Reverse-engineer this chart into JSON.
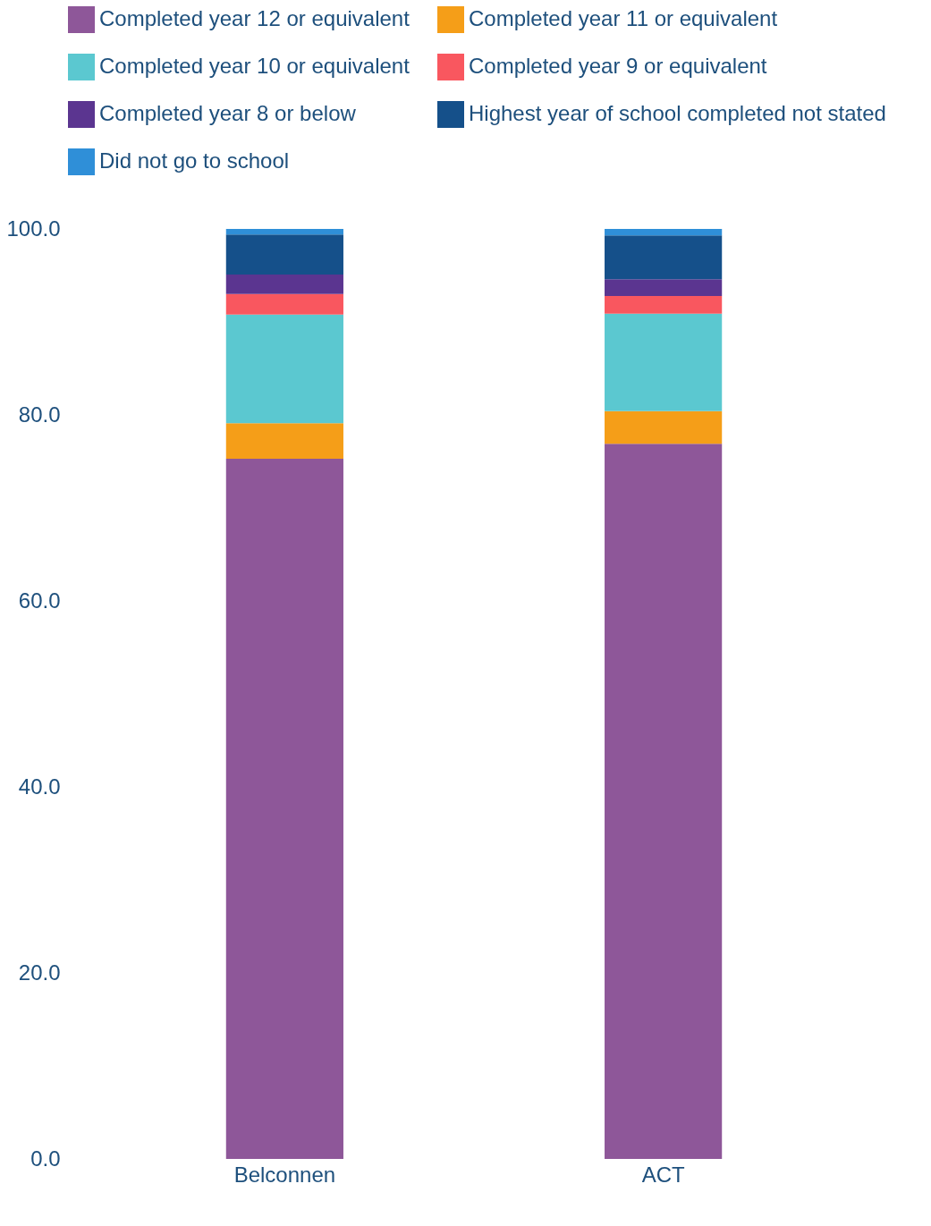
{
  "chart_data": {
    "type": "bar",
    "stacked": true,
    "categories": [
      "Belconnen",
      "ACT"
    ],
    "series": [
      {
        "name": "Completed year 12 or equivalent",
        "color": "#8e5799",
        "values": [
          75.3,
          76.9
        ]
      },
      {
        "name": "Completed year 11 or equivalent",
        "color": "#f59e18",
        "values": [
          3.8,
          3.5
        ]
      },
      {
        "name": "Completed year 10 or equivalent",
        "color": "#5bc8d0",
        "values": [
          11.7,
          10.5
        ]
      },
      {
        "name": "Completed year 9 or equivalent",
        "color": "#f9575f",
        "values": [
          2.2,
          1.9
        ]
      },
      {
        "name": "Completed year 8 or below",
        "color": "#5b3590",
        "values": [
          2.1,
          1.8
        ]
      },
      {
        "name": "Highest year of school completed not stated",
        "color": "#15508a",
        "values": [
          4.3,
          4.7
        ]
      },
      {
        "name": "Did not go to school",
        "color": "#2f8fd8",
        "values": [
          0.6,
          0.7
        ]
      }
    ],
    "ylim": [
      0,
      100
    ],
    "yticks": [
      {
        "value": 0,
        "label": "0.0"
      },
      {
        "value": 20,
        "label": "20.0"
      },
      {
        "value": 40,
        "label": "40.0"
      },
      {
        "value": 60,
        "label": "60.0"
      },
      {
        "value": 80,
        "label": "80.0"
      },
      {
        "value": 100,
        "label": "100.0"
      }
    ],
    "grid": false,
    "legend": "top"
  }
}
